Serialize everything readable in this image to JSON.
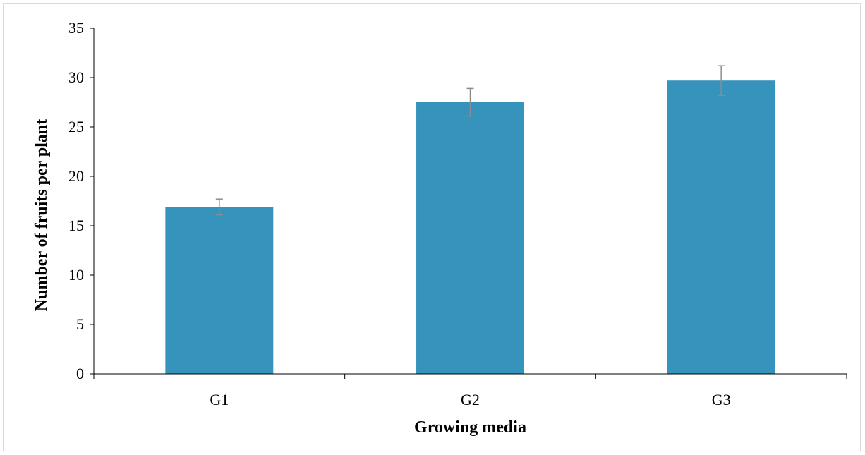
{
  "chart_data": {
    "type": "bar",
    "categories": [
      "G1",
      "G2",
      "G3"
    ],
    "values": [
      16.9,
      27.5,
      29.7
    ],
    "error": [
      0.8,
      1.4,
      1.5
    ],
    "title": "",
    "xlabel": "Growing media",
    "ylabel": "Number of fruits per plant",
    "ylim": [
      0,
      35
    ],
    "yticks": [
      0,
      5,
      10,
      15,
      20,
      25,
      30,
      35
    ],
    "ytick_labels": [
      "0",
      "5",
      "10",
      "15",
      "20",
      "25",
      "30",
      "35"
    ],
    "grid": false,
    "legend": "none",
    "colors": {
      "bar": "#3693bb",
      "error_bar": "#8c8c8c",
      "axis": "#000000"
    }
  }
}
